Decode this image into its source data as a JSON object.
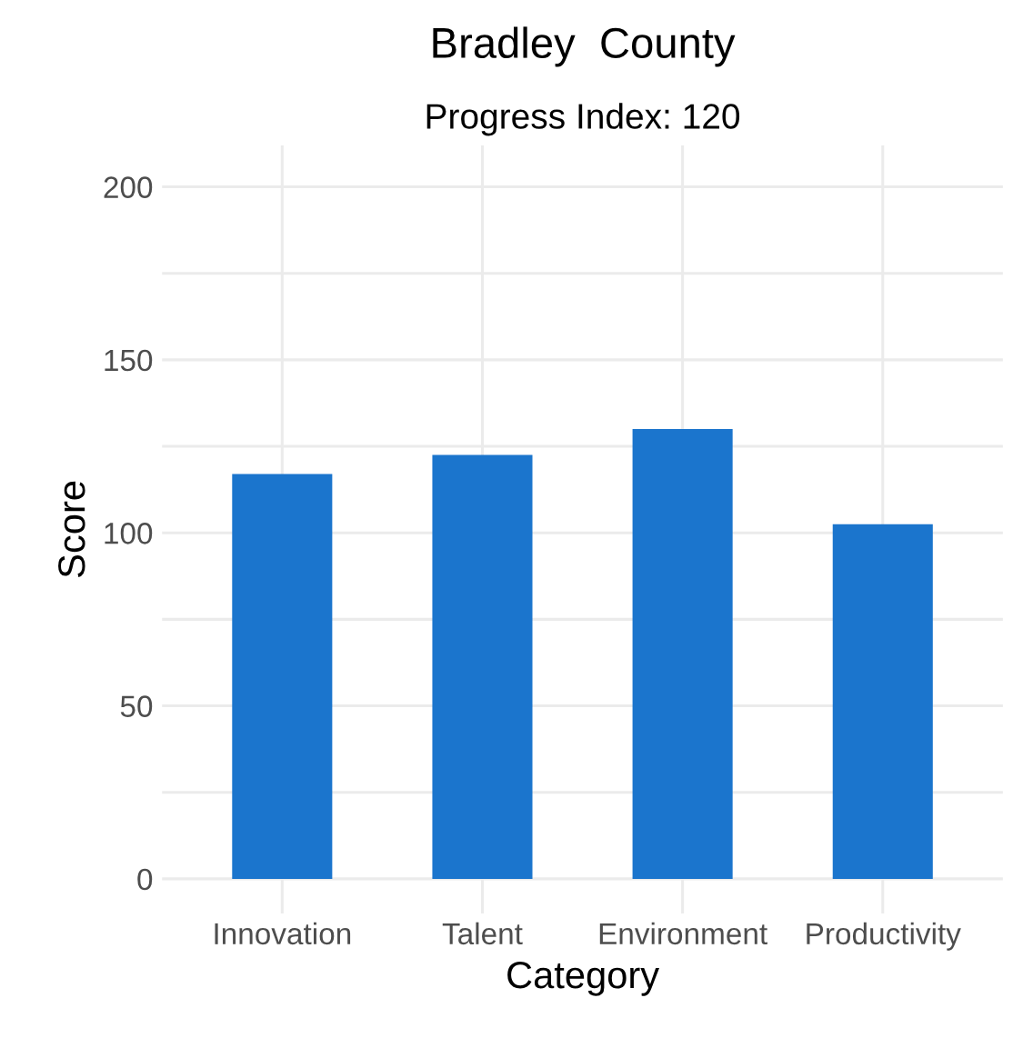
{
  "chart_data": {
    "type": "bar",
    "title": "Bradley  County",
    "subtitle": "Progress Index: 120",
    "xlabel": "Category",
    "ylabel": "Score",
    "categories": [
      "Innovation",
      "Talent",
      "Environment",
      "Productivity"
    ],
    "values": [
      117,
      122.5,
      130,
      102.5
    ],
    "color": "#1b75cd",
    "ylim": [
      -10,
      212
    ],
    "yticks": [
      0,
      {
        "value": 25,
        "label": null
      },
      50,
      {
        "value": 75,
        "label": null
      },
      100,
      {
        "value": 125,
        "label": null
      },
      150,
      {
        "value": 175,
        "label": null
      },
      200
    ],
    "grid": true
  }
}
